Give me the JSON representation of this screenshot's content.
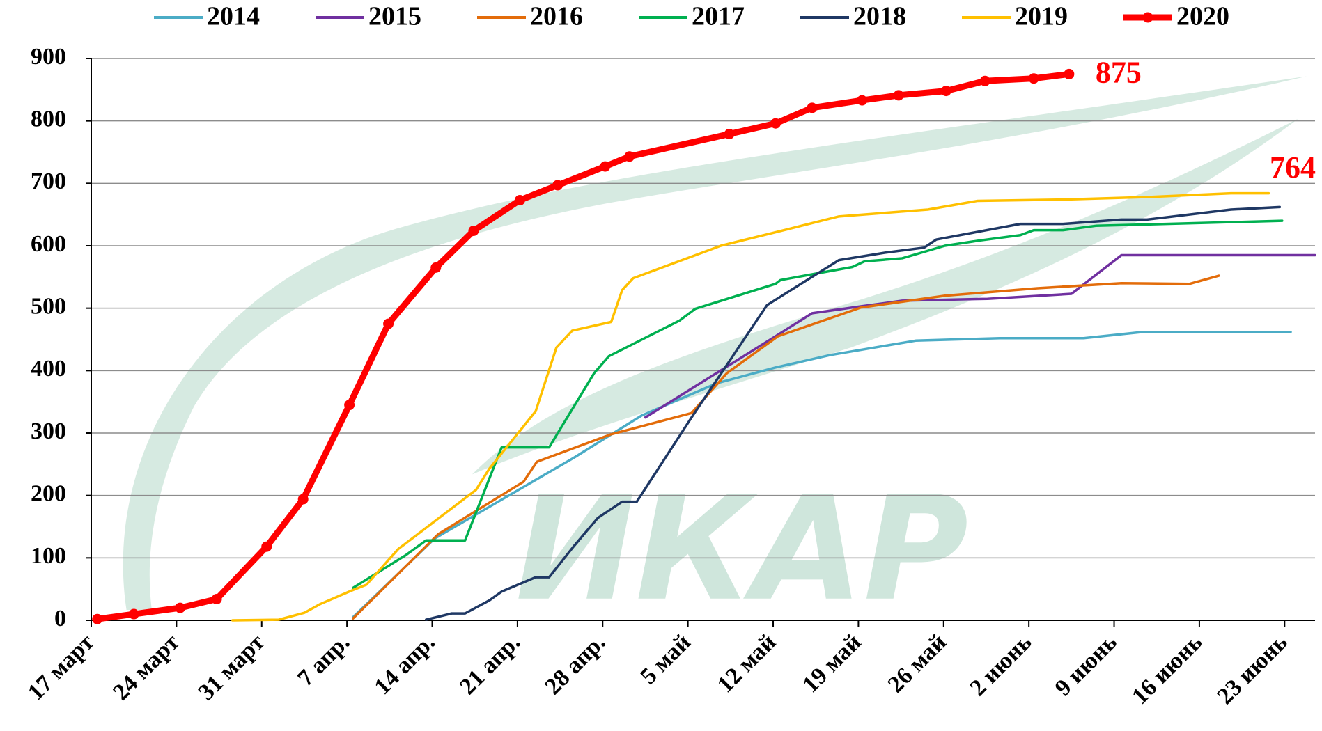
{
  "chart_data": {
    "type": "line",
    "watermark": "ИКАР",
    "legend": "top",
    "grid": true,
    "xlim": [
      0,
      100.5
    ],
    "xticks": [
      {
        "value": 0,
        "label": "17 март"
      },
      {
        "value": 7,
        "label": "24 март"
      },
      {
        "value": 14,
        "label": "31 март"
      },
      {
        "value": 21,
        "label": "7 апр."
      },
      {
        "value": 28,
        "label": "14 апр."
      },
      {
        "value": 35,
        "label": "21 апр."
      },
      {
        "value": 42,
        "label": "28 апр."
      },
      {
        "value": 49,
        "label": "5 май"
      },
      {
        "value": 56,
        "label": "12 май"
      },
      {
        "value": 63,
        "label": "19 май"
      },
      {
        "value": 70,
        "label": "26 май"
      },
      {
        "value": 77,
        "label": "2 июнь"
      },
      {
        "value": 84,
        "label": "9 июнь"
      },
      {
        "value": 91,
        "label": "16 июнь"
      },
      {
        "value": 98,
        "label": "23 июнь"
      }
    ],
    "ylim": [
      0,
      900
    ],
    "yticks": [
      0,
      100,
      200,
      300,
      400,
      500,
      600,
      700,
      800,
      900
    ],
    "annotations": [
      "764"
    ],
    "series": [
      {
        "name": "2014",
        "color": "#4bacc6",
        "x": [
          21.5,
          28.2,
          39.6,
          45.2,
          51.4,
          56.2,
          60.7,
          67.7,
          74.6,
          81.5,
          86.4,
          98.5
        ],
        "values": [
          5,
          131,
          260,
          328,
          380,
          405,
          425,
          448,
          452,
          452,
          462,
          462
        ]
      },
      {
        "name": "2015",
        "color": "#7030a0",
        "x": [
          45.5,
          56.2,
          59.2,
          63.2,
          66.6,
          73.6,
          80.5,
          84.6,
          100.5
        ],
        "values": [
          325,
          455,
          492,
          503,
          512,
          515,
          523,
          585,
          585
        ]
      },
      {
        "name": "2016",
        "color": "#e36c0a",
        "x": [
          21.5,
          28.5,
          35.5,
          36.6,
          42.7,
          49.3,
          52.2,
          56.4,
          63.2,
          70.1,
          77.7,
          84.6,
          90.2,
          92.6
        ],
        "values": [
          3,
          138,
          222,
          254,
          298,
          332,
          396,
          455,
          501,
          520,
          532,
          540,
          539,
          552
        ]
      },
      {
        "name": "2017",
        "color": "#00b050",
        "x": [
          21.5,
          25.8,
          27.5,
          30.7,
          33.7,
          37.6,
          41.3,
          42.5,
          48.3,
          49.6,
          56.2,
          56.6,
          62.5,
          63.5,
          66.6,
          70.1,
          72.8,
          76.3,
          77.4,
          79.8,
          82.5,
          97.8
        ],
        "values": [
          52,
          104,
          128,
          128,
          277,
          277,
          396,
          423,
          480,
          499,
          539,
          545,
          566,
          575,
          580,
          600,
          608,
          617,
          625,
          625,
          632,
          640
        ]
      },
      {
        "name": "2018",
        "color": "#1f3864",
        "x": [
          27.5,
          29.6,
          30.7,
          32.7,
          33.7,
          36.5,
          37.6,
          39.6,
          41.6,
          43.6,
          44.8,
          49.3,
          55.5,
          61.4,
          65.2,
          68.4,
          69.4,
          76.3,
          79.8,
          84.6,
          86.7,
          93.6,
          97.6
        ],
        "values": [
          1,
          11,
          11,
          32,
          46,
          69,
          69,
          118,
          164,
          190,
          190,
          325,
          505,
          577,
          589,
          597,
          610,
          635,
          635,
          642,
          642,
          658,
          662
        ]
      },
      {
        "name": "2019",
        "color": "#ffc000",
        "x": [
          11.6,
          15.4,
          17.5,
          18.8,
          21.3,
          22.6,
          25.2,
          31.6,
          32.7,
          36.5,
          38.2,
          39.5,
          42.7,
          43.6,
          44.5,
          51.7,
          57.3,
          61.4,
          68.7,
          72.8,
          79.8,
          86.7,
          93.6,
          96.7
        ],
        "values": [
          0,
          1,
          12,
          26,
          47,
          57,
          114,
          209,
          243,
          335,
          437,
          464,
          478,
          529,
          548,
          600,
          627,
          647,
          658,
          672,
          674,
          678,
          684,
          684
        ]
      },
      {
        "name": "2020",
        "color": "#ff0000",
        "markers": true,
        "x": [
          0.5,
          3.5,
          7.3,
          10.3,
          14.4,
          17.4,
          21.2,
          24.4,
          28.3,
          31.4,
          35.2,
          38.3,
          42.2,
          44.2,
          52.4,
          56.2,
          59.2,
          63.3,
          66.3,
          70.2,
          73.4,
          77.4,
          80.3
        ],
        "values": [
          2,
          10,
          20,
          34,
          118,
          194,
          345,
          475,
          565,
          624,
          673,
          697,
          727,
          743,
          779,
          796,
          821,
          833,
          841,
          848,
          864,
          868,
          875
        ]
      }
    ]
  }
}
